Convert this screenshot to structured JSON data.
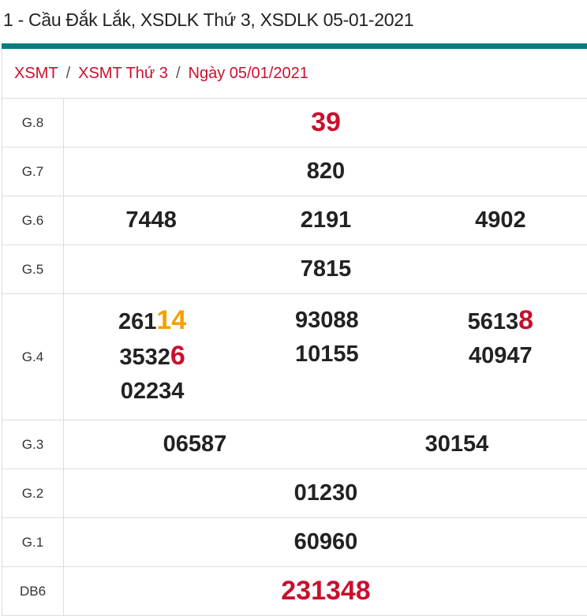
{
  "title": "1 - Cầu Đắk Lắk, XSDLK Thứ 3, XSDLK 05-01-2021",
  "colors": {
    "accent": "#077d80",
    "red": "#c8102e",
    "orange": "#f5a000"
  },
  "breadcrumb": [
    "XSMT",
    "XSMT Thứ 3",
    "Ngày 05/01/2021"
  ],
  "breadcrumb_sep": "/",
  "rows": {
    "g8": {
      "label": "G.8",
      "values": [
        "39"
      ]
    },
    "g7": {
      "label": "G.7",
      "values": [
        "820"
      ]
    },
    "g6": {
      "label": "G.6",
      "values": [
        "7448",
        "2191",
        "4902"
      ]
    },
    "g5": {
      "label": "G.5",
      "values": [
        "7815"
      ]
    },
    "g4": {
      "label": "G.4",
      "values": [
        {
          "main": "261",
          "hl": "14",
          "hl_color": "orange"
        },
        {
          "main": "93088",
          "hl": ""
        },
        {
          "main": "5613",
          "hl": "8",
          "hl_color": "red"
        },
        {
          "main": "3532",
          "hl": "6",
          "hl_color": "red"
        },
        {
          "main": "10155",
          "hl": ""
        },
        {
          "main": "40947",
          "hl": ""
        },
        {
          "main": "02234",
          "hl": ""
        }
      ]
    },
    "g3": {
      "label": "G.3",
      "values": [
        "06587",
        "30154"
      ]
    },
    "g2": {
      "label": "G.2",
      "values": [
        "01230"
      ]
    },
    "g1": {
      "label": "G.1",
      "values": [
        "60960"
      ]
    },
    "db": {
      "label": "DB6",
      "values": [
        "231348"
      ]
    }
  }
}
